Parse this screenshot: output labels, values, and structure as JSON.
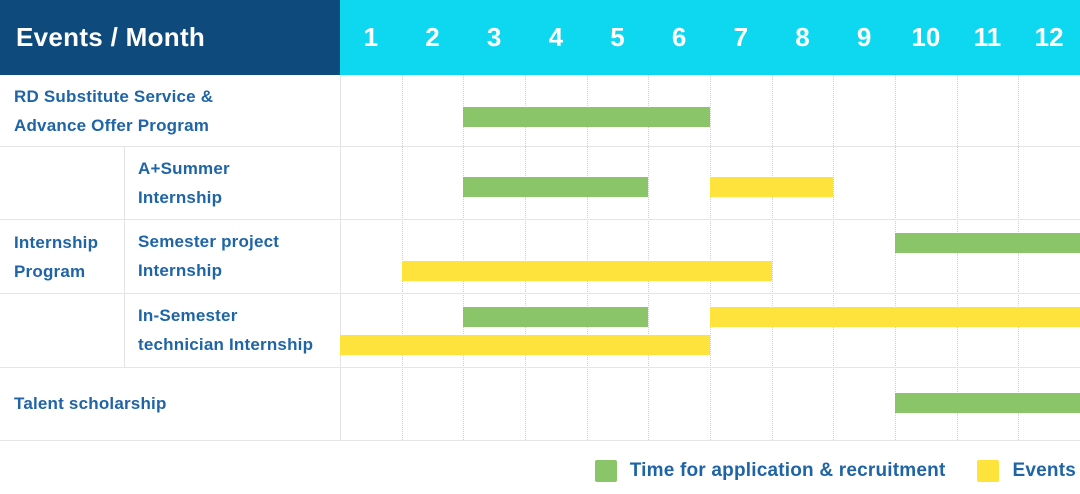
{
  "header": {
    "corner_label": "Events / Month",
    "months": [
      "1",
      "2",
      "3",
      "4",
      "5",
      "6",
      "7",
      "8",
      "9",
      "10",
      "11",
      "12"
    ]
  },
  "colors": {
    "header_navy": "#0f4a7d",
    "header_cyan": "#0ed8f0",
    "bar_green": "#8bc56a",
    "bar_yellow": "#ffe33d",
    "label_blue": "#1e64a6",
    "grid_solid": "#e5e5e5",
    "grid_dotted": "#cfcfcf"
  },
  "chart_data": {
    "type": "bar",
    "subtype": "gantt",
    "x_axis": {
      "unit": "Month",
      "ticks": [
        1,
        2,
        3,
        4,
        5,
        6,
        7,
        8,
        9,
        10,
        11,
        12
      ],
      "range": [
        1,
        12
      ]
    },
    "group_label": {
      "text": "Internship Program",
      "lines": [
        "Internship",
        "Program"
      ],
      "spans_rows": [
        1,
        2,
        3
      ]
    },
    "rows": [
      {
        "label": "RD Substitute Service & Advance Offer Program",
        "lines": [
          "RD Substitute Service &",
          "Advance Offer Program"
        ],
        "group": null,
        "bars": [
          {
            "series": "application",
            "start": 3,
            "end": 6,
            "line": "single"
          }
        ]
      },
      {
        "label": "A+Summer Internship",
        "lines": [
          "A+Summer",
          "Internship"
        ],
        "group": "Internship Program",
        "bars": [
          {
            "series": "application",
            "start": 3,
            "end": 5,
            "line": "single"
          },
          {
            "series": "events",
            "start": 7,
            "end": 8,
            "line": "single"
          }
        ]
      },
      {
        "label": "Semester project Internship",
        "lines": [
          "Semester project",
          "Internship"
        ],
        "group": "Internship Program",
        "bars": [
          {
            "series": "application",
            "start": 10,
            "end": 12,
            "line": "top"
          },
          {
            "series": "events",
            "start": 2,
            "end": 7,
            "line": "bottom"
          }
        ]
      },
      {
        "label": "In-Semester technician Internship",
        "lines": [
          "In-Semester",
          "technician Internship"
        ],
        "group": "Internship Program",
        "bars": [
          {
            "series": "application",
            "start": 3,
            "end": 5,
            "line": "top"
          },
          {
            "series": "events",
            "start": 7,
            "end": 12,
            "line": "top"
          },
          {
            "series": "events",
            "start": 1,
            "end": 6,
            "line": "bottom"
          }
        ]
      },
      {
        "label": "Talent scholarship",
        "lines": [
          "Talent scholarship"
        ],
        "group": null,
        "bars": [
          {
            "series": "application",
            "start": 10,
            "end": 12,
            "line": "single"
          }
        ]
      }
    ],
    "series": [
      {
        "id": "application",
        "label": "Time for application & recruitment",
        "color": "#8bc56a"
      },
      {
        "id": "events",
        "label": "Events",
        "color": "#ffe33d"
      }
    ],
    "legend_position": "bottom-right"
  }
}
